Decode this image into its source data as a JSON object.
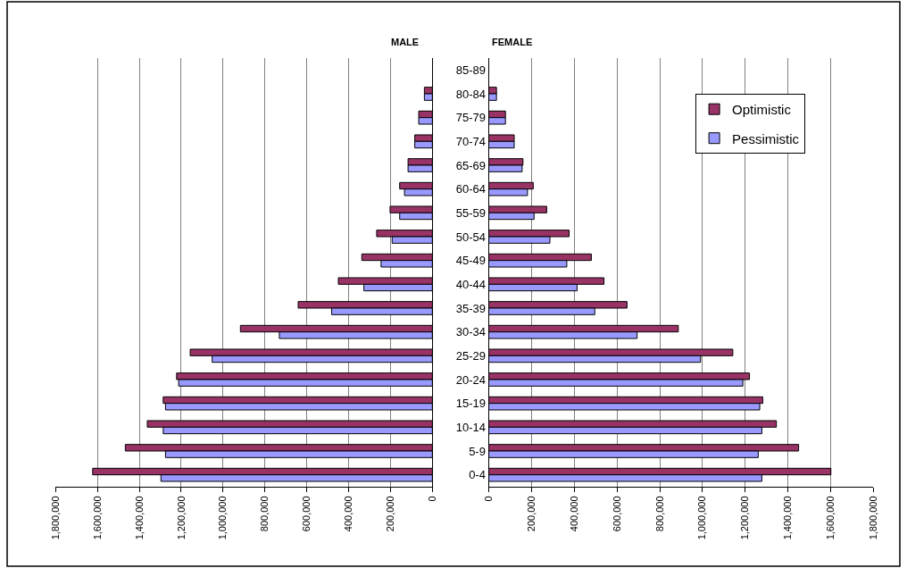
{
  "chart_data": [
    {
      "type": "bar",
      "title": "MALE",
      "orientation": "horizontal",
      "categories": [
        null,
        null,
        null,
        null,
        null,
        null,
        null,
        null,
        null,
        null,
        null,
        null,
        null,
        null,
        null,
        null,
        null,
        null
      ],
      "series": [
        {
          "color": "#993366",
          "values": [
            null,
            38000,
            65000,
            84000,
            116000,
            156000,
            202000,
            266000,
            337000,
            449000,
            641000,
            917000,
            1157000,
            1222000,
            1286000,
            1362000,
            1467000,
            1623000
          ]
        },
        {
          "color": "#9999ff",
          "values": [
            null,
            38000,
            65000,
            84000,
            116000,
            133000,
            156000,
            192000,
            245000,
            327000,
            481000,
            731000,
            1052000,
            1212000,
            1275000,
            1286000,
            1275000,
            1297000
          ]
        }
      ],
      "xlim": [
        1800000,
        0
      ],
      "xticks": [
        {
          "value": 1800000,
          "label": "1,800,000"
        },
        {
          "value": 1600000,
          "label": "1,600,000"
        },
        {
          "value": 1400000,
          "label": "1,400,000"
        },
        {
          "value": 1200000,
          "label": "1,200,000"
        },
        {
          "value": 1000000,
          "label": "1,000,000"
        },
        {
          "value": 800000,
          "label": "800,000"
        },
        {
          "value": 600000,
          "label": "600,000"
        },
        {
          "value": 400000,
          "label": "400,000"
        },
        {
          "value": 200000,
          "label": "200,000"
        },
        0
      ],
      "grid": "x",
      "tick_labels": "x",
      "legend": false
    },
    {
      "type": "bar",
      "title": "FEMALE",
      "orientation": "horizontal",
      "categories": [
        "85-89",
        "80-84",
        "75-79",
        "70-74",
        "65-69",
        "60-64",
        "55-59",
        "50-54",
        "45-49",
        "40-44",
        "35-39",
        "30-34",
        "25-29",
        "20-24",
        "15-19",
        "10-14",
        "5-9",
        "0-4"
      ],
      "series": [
        {
          "name": "Optimistic",
          "color": "#993366",
          "values": [
            0,
            36000,
            78000,
            119000,
            160000,
            208000,
            271000,
            376000,
            480000,
            539000,
            647000,
            887000,
            1142000,
            1220000,
            1282000,
            1346000,
            1450000,
            1601000
          ]
        },
        {
          "name": "Pessimistic",
          "color": "#9999ff",
          "values": [
            0,
            36000,
            78000,
            119000,
            156000,
            181000,
            212000,
            286000,
            365000,
            413000,
            496000,
            694000,
            991000,
            1189000,
            1268000,
            1278000,
            1261000,
            1278000
          ]
        }
      ],
      "xlim": [
        0,
        1800000
      ],
      "xticks": [
        0,
        {
          "value": 200000,
          "label": "200,000"
        },
        {
          "value": 400000,
          "label": "400,000"
        },
        {
          "value": 600000,
          "label": "600,000"
        },
        {
          "value": 800000,
          "label": "800,000"
        },
        {
          "value": 1000000,
          "label": "1,000,000"
        },
        {
          "value": 1200000,
          "label": "1,200,000"
        },
        {
          "value": 1400000,
          "label": "1,400,000"
        },
        {
          "value": 1600000,
          "label": "1,600,000"
        },
        {
          "value": 1800000,
          "label": "1,800,000"
        }
      ],
      "grid": "x",
      "legend": "top right"
    }
  ]
}
